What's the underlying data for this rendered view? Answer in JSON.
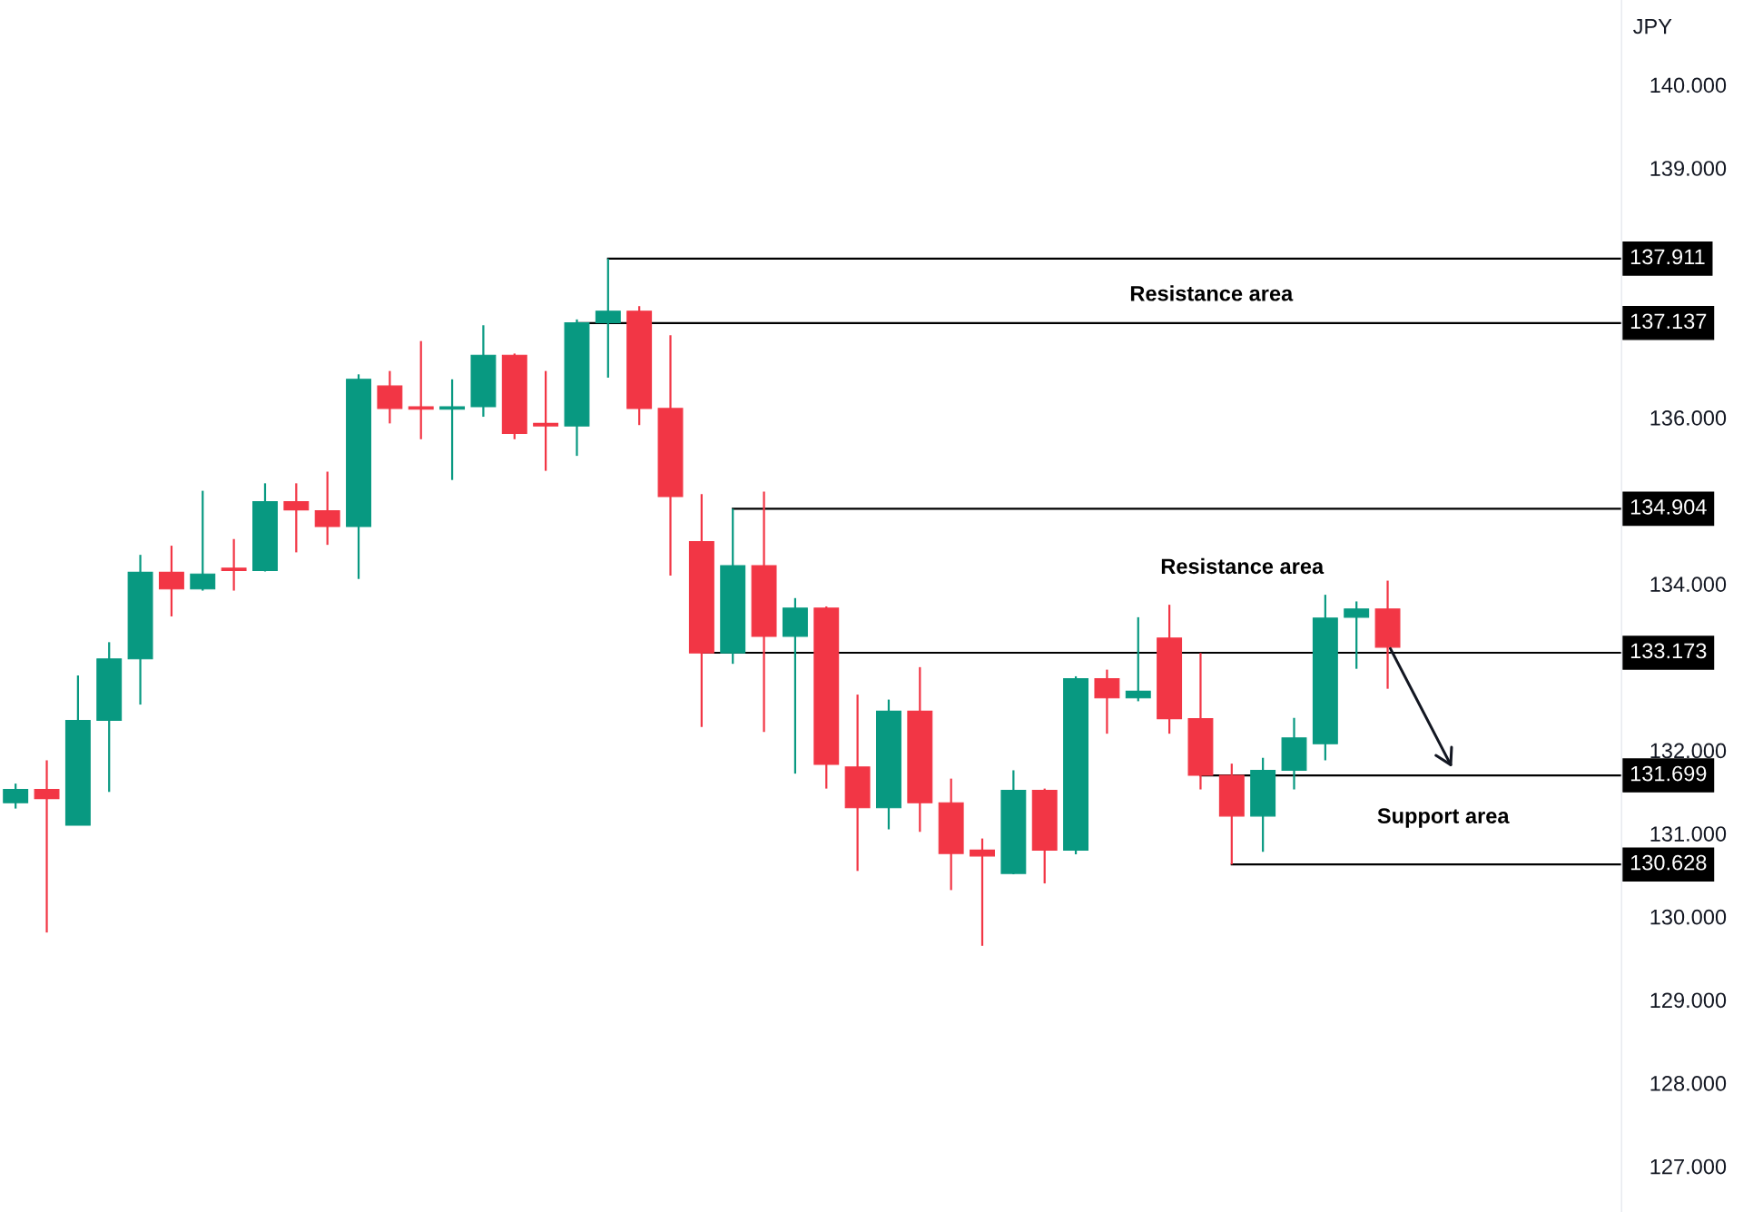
{
  "chart_data": {
    "type": "candlestick",
    "ylabel": "JPY",
    "categories": [
      null,
      null,
      null,
      null,
      null,
      null,
      null,
      null,
      null,
      null,
      null,
      null,
      null,
      null,
      null,
      null,
      null,
      null,
      null,
      null,
      null,
      null,
      null,
      null,
      null,
      null,
      null,
      null,
      null,
      null,
      null,
      null,
      null,
      null,
      null,
      null,
      null,
      null,
      null,
      null,
      null,
      null,
      null,
      null,
      null,
      null,
      null,
      null,
      null,
      null,
      null,
      null
    ],
    "ohlc": [
      [
        131.37,
        131.6,
        131.3,
        131.53
      ],
      [
        131.53,
        131.88,
        129.81,
        131.42
      ],
      [
        131.1,
        132.9,
        131.1,
        132.36
      ],
      [
        132.36,
        133.3,
        131.5,
        133.1
      ],
      [
        133.1,
        134.35,
        132.55,
        134.14
      ],
      [
        134.14,
        134.46,
        133.61,
        133.94
      ],
      [
        133.94,
        135.12,
        133.92,
        134.12
      ],
      [
        134.19,
        134.54,
        133.92,
        134.16
      ],
      [
        134.16,
        135.21,
        134.15,
        134.99
      ],
      [
        134.99,
        135.21,
        134.38,
        134.89
      ],
      [
        134.88,
        135.35,
        134.47,
        134.69
      ],
      [
        134.69,
        136.52,
        134.06,
        136.46
      ],
      [
        136.38,
        136.56,
        135.93,
        136.11
      ],
      [
        136.13,
        136.92,
        135.74,
        136.1
      ],
      [
        136.1,
        136.46,
        135.25,
        136.13
      ],
      [
        136.13,
        137.11,
        136.01,
        136.75
      ],
      [
        136.75,
        136.77,
        135.74,
        135.81
      ],
      [
        135.93,
        136.56,
        135.36,
        135.9
      ],
      [
        135.9,
        137.18,
        135.54,
        137.14
      ],
      [
        137.14,
        137.911,
        136.48,
        137.28
      ],
      [
        137.28,
        137.34,
        135.91,
        136.11
      ],
      [
        136.11,
        136.99,
        134.1,
        135.05
      ],
      [
        134.51,
        135.08,
        132.28,
        133.17
      ],
      [
        133.17,
        134.904,
        133.04,
        134.22
      ],
      [
        134.22,
        135.11,
        132.22,
        133.37
      ],
      [
        133.37,
        133.83,
        131.72,
        133.71
      ],
      [
        133.71,
        133.73,
        131.54,
        131.83
      ],
      [
        131.8,
        132.67,
        130.55,
        131.31
      ],
      [
        131.31,
        132.61,
        131.05,
        132.47
      ],
      [
        132.47,
        133.0,
        131.02,
        131.37
      ],
      [
        131.37,
        131.66,
        130.32,
        130.76
      ],
      [
        130.8,
        130.94,
        129.65,
        130.73
      ],
      [
        130.52,
        131.76,
        130.51,
        131.52
      ],
      [
        131.52,
        131.54,
        130.4,
        130.8
      ],
      [
        130.8,
        132.89,
        130.75,
        132.86
      ],
      [
        132.86,
        132.97,
        132.2,
        132.63
      ],
      [
        132.63,
        133.6,
        132.59,
        132.71
      ],
      [
        133.35,
        133.75,
        132.2,
        132.38
      ],
      [
        132.38,
        133.17,
        131.53,
        131.7
      ],
      [
        131.7,
        131.84,
        130.628,
        131.21
      ],
      [
        131.21,
        131.91,
        130.78,
        131.76
      ],
      [
        131.76,
        132.39,
        131.53,
        132.15
      ],
      [
        132.08,
        133.87,
        131.88,
        133.59
      ],
      [
        133.6,
        133.79,
        132.98,
        133.7
      ],
      [
        133.7,
        134.04,
        132.74,
        133.24
      ],
      null,
      null,
      null,
      null,
      null,
      null,
      null
    ],
    "colors": [
      "#089981",
      "#f23645",
      "#089981",
      "#089981",
      "#089981",
      "#f23645",
      "#089981",
      "#f23645",
      "#089981",
      "#f23645",
      "#f23645",
      "#089981",
      "#f23645",
      "#f23645",
      "#089981",
      "#089981",
      "#f23645",
      "#f23645",
      "#089981",
      "#089981",
      "#f23645",
      "#f23645",
      "#f23645",
      "#089981",
      "#f23645",
      "#089981",
      "#f23645",
      "#f23645",
      "#089981",
      "#f23645",
      "#f23645",
      "#f23645",
      "#089981",
      "#f23645",
      "#089981",
      "#f23645",
      "#089981",
      "#f23645",
      "#f23645",
      "#f23645",
      "#089981",
      "#089981",
      "#089981",
      "#089981",
      "#f23645",
      null,
      null,
      null,
      null,
      null,
      null,
      null
    ],
    "ylim": [
      126.45,
      141.02
    ],
    "yticks": [
      {
        "value": 127,
        "label": "127.000"
      },
      {
        "value": 128,
        "label": "128.000"
      },
      {
        "value": 129,
        "label": "129.000"
      },
      {
        "value": 130,
        "label": "130.000"
      },
      {
        "value": 131,
        "label": "131.000"
      },
      {
        "value": 132,
        "label": "132.000"
      },
      {
        "value": 134,
        "label": "134.000"
      },
      {
        "value": 136,
        "label": "136.000"
      },
      {
        "value": 139,
        "label": "139.000"
      },
      {
        "value": 140,
        "label": "140.000"
      }
    ],
    "ref_lines": [
      {
        "axis": "y",
        "value": 137.911,
        "label": "137.911",
        "color": "#000000"
      },
      {
        "axis": "y",
        "value": 137.137,
        "label": "137.137",
        "color": "#000000"
      },
      {
        "axis": "y",
        "value": 134.904,
        "label": "134.904",
        "color": "#000000"
      },
      {
        "axis": "y",
        "value": 133.173,
        "label": "133.173",
        "color": "#000000"
      },
      {
        "axis": "y",
        "value": 131.699,
        "label": "131.699",
        "color": "#000000"
      },
      {
        "axis": "y",
        "value": 130.628,
        "label": "130.628",
        "color": "#000000"
      }
    ],
    "annotations": [
      "Resistance area",
      "Resistance area",
      "Support area"
    ],
    "grid": false
  }
}
